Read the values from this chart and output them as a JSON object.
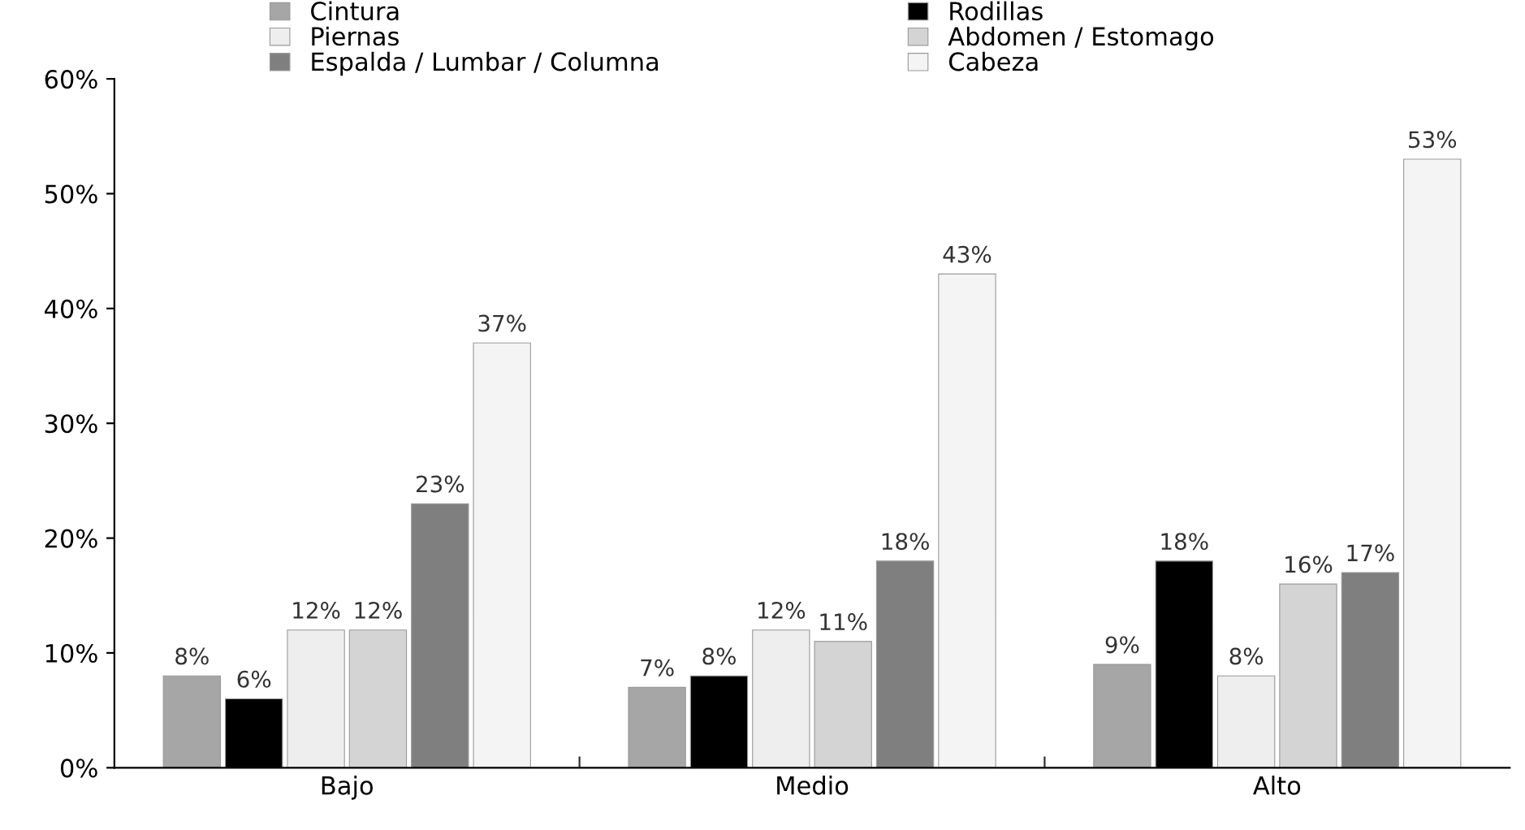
{
  "chart_data": {
    "type": "bar",
    "categories": [
      "Bajo",
      "Medio",
      "Alto"
    ],
    "series": [
      {
        "name": "Cintura",
        "color": "#a6a6a6",
        "values": [
          8,
          7,
          9
        ],
        "value_labels": [
          "8%",
          "7%",
          "9%"
        ]
      },
      {
        "name": "Rodillas",
        "color": "#000000",
        "values": [
          6,
          8,
          18
        ],
        "value_labels": [
          "6%",
          "8%",
          "18%"
        ]
      },
      {
        "name": "Piernas",
        "color": "#eeeeee",
        "values": [
          12,
          12,
          8
        ],
        "value_labels": [
          "12%",
          "12%",
          "8%"
        ]
      },
      {
        "name": "Abdomen / Estomago",
        "color": "#d4d4d4",
        "values": [
          12,
          11,
          16
        ],
        "value_labels": [
          "12%",
          "11%",
          "16%"
        ]
      },
      {
        "name": "Espalda / Lumbar / Columna",
        "color": "#7f7f7f",
        "values": [
          23,
          18,
          17
        ],
        "value_labels": [
          "23%",
          "18%",
          "17%"
        ]
      },
      {
        "name": "Cabeza",
        "color": "#f4f4f4",
        "values": [
          37,
          43,
          53
        ],
        "value_labels": [
          "37%",
          "43%",
          "53%"
        ]
      }
    ],
    "ylim": [
      0,
      60
    ],
    "yticks": [
      {
        "value": 0,
        "label": "0%"
      },
      {
        "value": 10,
        "label": "10%"
      },
      {
        "value": 20,
        "label": "20%"
      },
      {
        "value": 30,
        "label": "30%"
      },
      {
        "value": 40,
        "label": "40%"
      },
      {
        "value": 50,
        "label": "50%"
      },
      {
        "value": 60,
        "label": "60%"
      }
    ],
    "grid": false,
    "legend": "top"
  }
}
